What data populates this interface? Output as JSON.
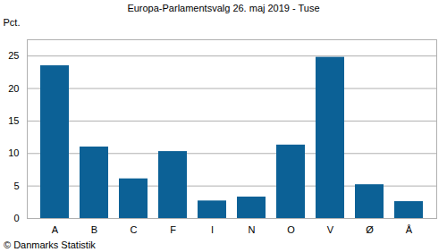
{
  "chart_data": {
    "type": "bar",
    "title": "Europa-Parlamentsvalg 26. maj 2019 - Tuse",
    "y_label": "Pct.",
    "caption": "© Danmarks Statistik",
    "categories": [
      "A",
      "B",
      "C",
      "F",
      "I",
      "N",
      "O",
      "V",
      "Ø",
      "Å"
    ],
    "values": [
      23.5,
      11.0,
      6.1,
      10.3,
      2.7,
      3.3,
      11.3,
      24.8,
      5.2,
      2.6
    ],
    "color": "#0c6196",
    "ylim": [
      0,
      27.5
    ],
    "yticks": [
      0,
      5,
      10,
      15,
      20,
      25
    ],
    "grid": true
  }
}
